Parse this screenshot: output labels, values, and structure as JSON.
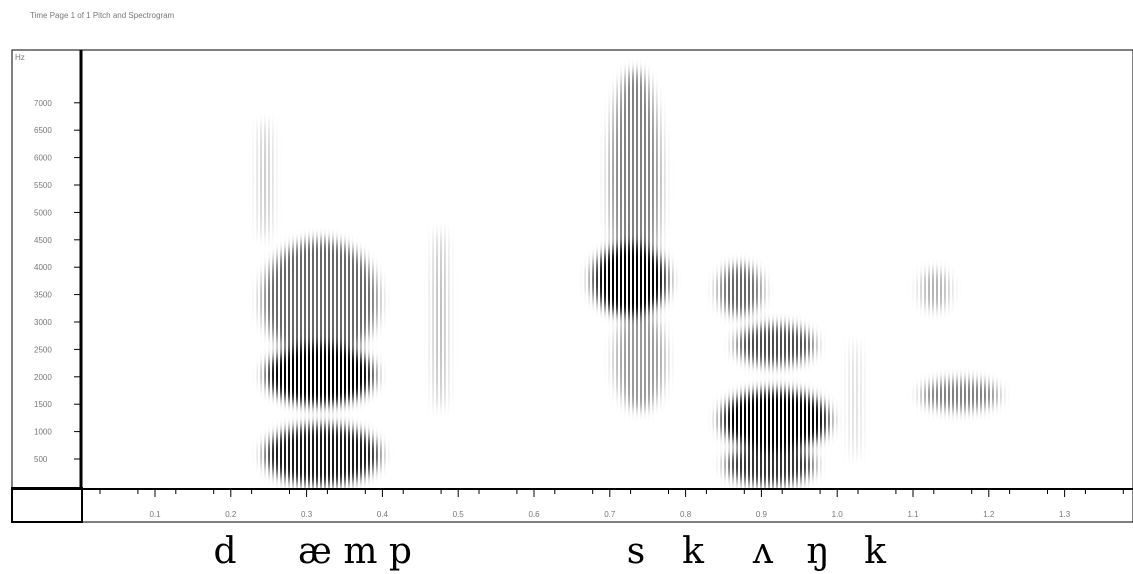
{
  "header": "Time    Page 1 of 1    Pitch and Spectrogram",
  "y_axis": {
    "unit": "Hz",
    "ticks": [
      "500",
      "1000",
      "1500",
      "2000",
      "2500",
      "3000",
      "3500",
      "4000",
      "4500",
      "5000",
      "5500",
      "6000",
      "6500",
      "7000"
    ]
  },
  "x_axis": {
    "ticks": [
      "0.1",
      "0.2",
      "0.3",
      "0.4",
      "0.5",
      "0.6",
      "0.7",
      "0.8",
      "0.9",
      "1.0",
      "1.1",
      "1.2",
      "1.3"
    ]
  },
  "transcript": [
    "d",
    "æ m p",
    "s",
    "k",
    "ʌ",
    "ŋ",
    "k"
  ]
}
